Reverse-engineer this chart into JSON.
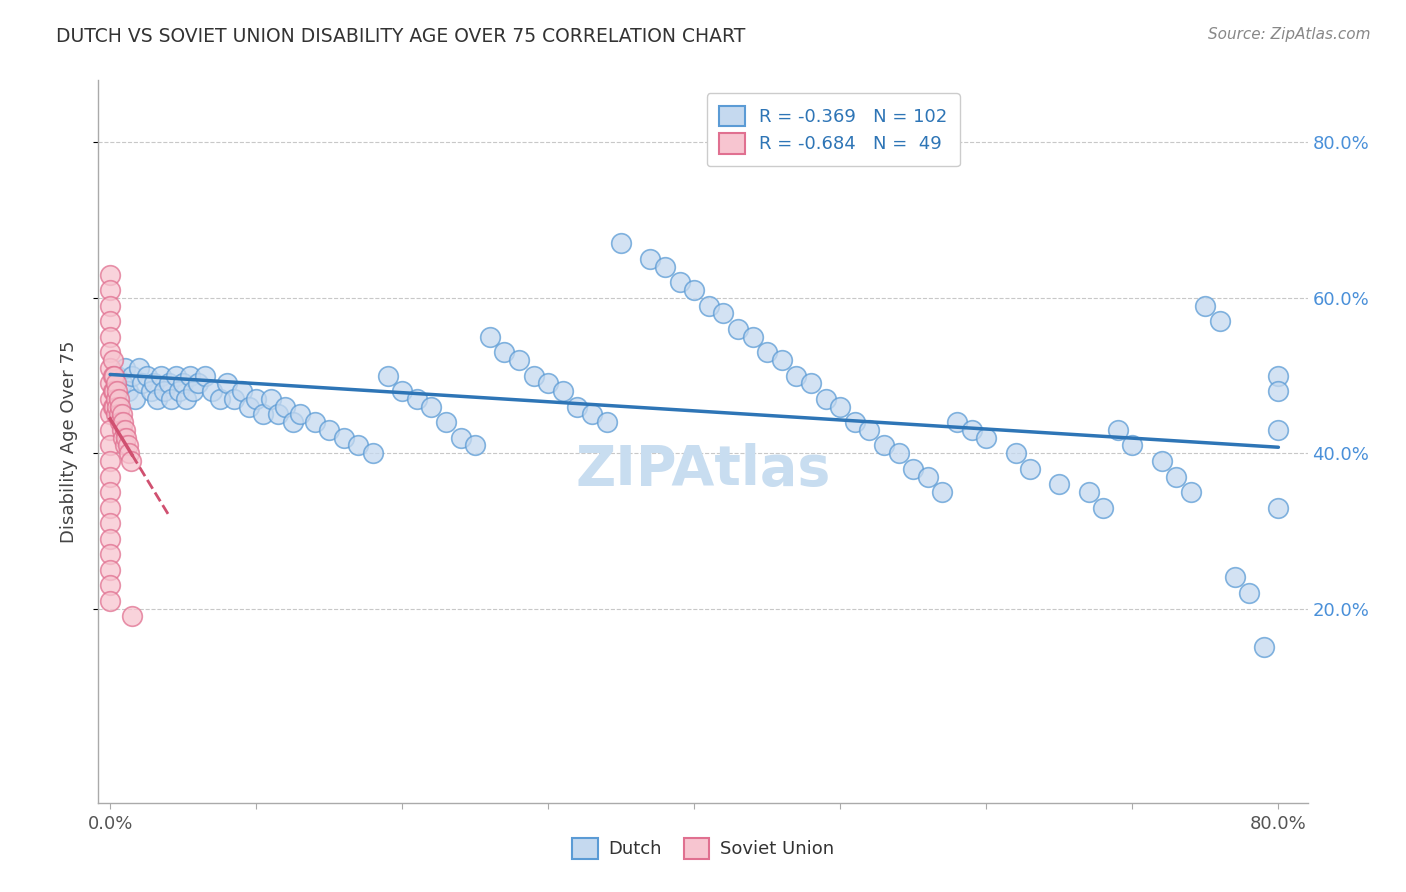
{
  "title": "DUTCH VS SOVIET UNION DISABILITY AGE OVER 75 CORRELATION CHART",
  "source": "Source: ZipAtlas.com",
  "ylabel": "Disability Age Over 75",
  "dutch_R": "-0.369",
  "dutch_N": "102",
  "soviet_R": "-0.684",
  "soviet_N": "49",
  "dutch_face_color": "#c5d9ef",
  "dutch_edge_color": "#5b9bd5",
  "soviet_face_color": "#f7c5d0",
  "soviet_edge_color": "#e07090",
  "dutch_line_color": "#2e75b6",
  "soviet_line_color": "#d05070",
  "watermark_color": "#c8ddf0",
  "xtick_vals": [
    0.0,
    0.1,
    0.2,
    0.3,
    0.4,
    0.5,
    0.6,
    0.7,
    0.8
  ],
  "xtick_labels": [
    "0.0%",
    "",
    "",
    "",
    "",
    "",
    "",
    "",
    "80.0%"
  ],
  "ytick_vals": [
    0.2,
    0.4,
    0.6,
    0.8
  ],
  "ytick_labels": [
    "20.0%",
    "40.0%",
    "60.0%",
    "80.0%"
  ],
  "xlim": [
    -0.008,
    0.82
  ],
  "ylim": [
    -0.05,
    0.88
  ],
  "dutch_x": [
    0.005,
    0.008,
    0.01,
    0.012,
    0.015,
    0.017,
    0.02,
    0.022,
    0.025,
    0.028,
    0.03,
    0.032,
    0.035,
    0.037,
    0.04,
    0.042,
    0.045,
    0.047,
    0.05,
    0.052,
    0.055,
    0.057,
    0.06,
    0.065,
    0.07,
    0.075,
    0.08,
    0.085,
    0.09,
    0.095,
    0.1,
    0.105,
    0.11,
    0.115,
    0.12,
    0.125,
    0.13,
    0.14,
    0.15,
    0.16,
    0.17,
    0.18,
    0.19,
    0.2,
    0.21,
    0.22,
    0.23,
    0.24,
    0.25,
    0.26,
    0.27,
    0.28,
    0.29,
    0.3,
    0.31,
    0.32,
    0.33,
    0.34,
    0.35,
    0.37,
    0.38,
    0.39,
    0.4,
    0.41,
    0.42,
    0.43,
    0.44,
    0.45,
    0.46,
    0.47,
    0.48,
    0.49,
    0.5,
    0.51,
    0.52,
    0.53,
    0.54,
    0.55,
    0.56,
    0.57,
    0.58,
    0.59,
    0.6,
    0.62,
    0.63,
    0.65,
    0.67,
    0.68,
    0.69,
    0.7,
    0.72,
    0.73,
    0.74,
    0.75,
    0.76,
    0.77,
    0.78,
    0.79,
    0.8,
    0.8,
    0.8,
    0.8
  ],
  "dutch_y": [
    0.5,
    0.49,
    0.51,
    0.48,
    0.5,
    0.47,
    0.51,
    0.49,
    0.5,
    0.48,
    0.49,
    0.47,
    0.5,
    0.48,
    0.49,
    0.47,
    0.5,
    0.48,
    0.49,
    0.47,
    0.5,
    0.48,
    0.49,
    0.5,
    0.48,
    0.47,
    0.49,
    0.47,
    0.48,
    0.46,
    0.47,
    0.45,
    0.47,
    0.45,
    0.46,
    0.44,
    0.45,
    0.44,
    0.43,
    0.42,
    0.41,
    0.4,
    0.5,
    0.48,
    0.47,
    0.46,
    0.44,
    0.42,
    0.41,
    0.55,
    0.53,
    0.52,
    0.5,
    0.49,
    0.48,
    0.46,
    0.45,
    0.44,
    0.67,
    0.65,
    0.64,
    0.62,
    0.61,
    0.59,
    0.58,
    0.56,
    0.55,
    0.53,
    0.52,
    0.5,
    0.49,
    0.47,
    0.46,
    0.44,
    0.43,
    0.41,
    0.4,
    0.38,
    0.37,
    0.35,
    0.44,
    0.43,
    0.42,
    0.4,
    0.38,
    0.36,
    0.35,
    0.33,
    0.43,
    0.41,
    0.39,
    0.37,
    0.35,
    0.59,
    0.57,
    0.24,
    0.22,
    0.15,
    0.33,
    0.43,
    0.5,
    0.48
  ],
  "soviet_x": [
    0.0,
    0.0,
    0.0,
    0.0,
    0.0,
    0.0,
    0.0,
    0.0,
    0.0,
    0.0,
    0.0,
    0.0,
    0.0,
    0.0,
    0.0,
    0.0,
    0.0,
    0.0,
    0.0,
    0.0,
    0.0,
    0.0,
    0.002,
    0.002,
    0.002,
    0.002,
    0.003,
    0.003,
    0.003,
    0.004,
    0.004,
    0.004,
    0.005,
    0.005,
    0.006,
    0.006,
    0.007,
    0.007,
    0.008,
    0.008,
    0.009,
    0.009,
    0.01,
    0.01,
    0.011,
    0.012,
    0.013,
    0.014,
    0.015
  ],
  "soviet_y": [
    0.63,
    0.61,
    0.59,
    0.57,
    0.55,
    0.53,
    0.51,
    0.49,
    0.47,
    0.45,
    0.43,
    0.41,
    0.39,
    0.37,
    0.35,
    0.33,
    0.31,
    0.29,
    0.27,
    0.25,
    0.23,
    0.21,
    0.52,
    0.5,
    0.48,
    0.46,
    0.5,
    0.48,
    0.46,
    0.49,
    0.47,
    0.45,
    0.48,
    0.46,
    0.47,
    0.45,
    0.46,
    0.44,
    0.45,
    0.43,
    0.44,
    0.42,
    0.43,
    0.41,
    0.42,
    0.41,
    0.4,
    0.39,
    0.19
  ]
}
